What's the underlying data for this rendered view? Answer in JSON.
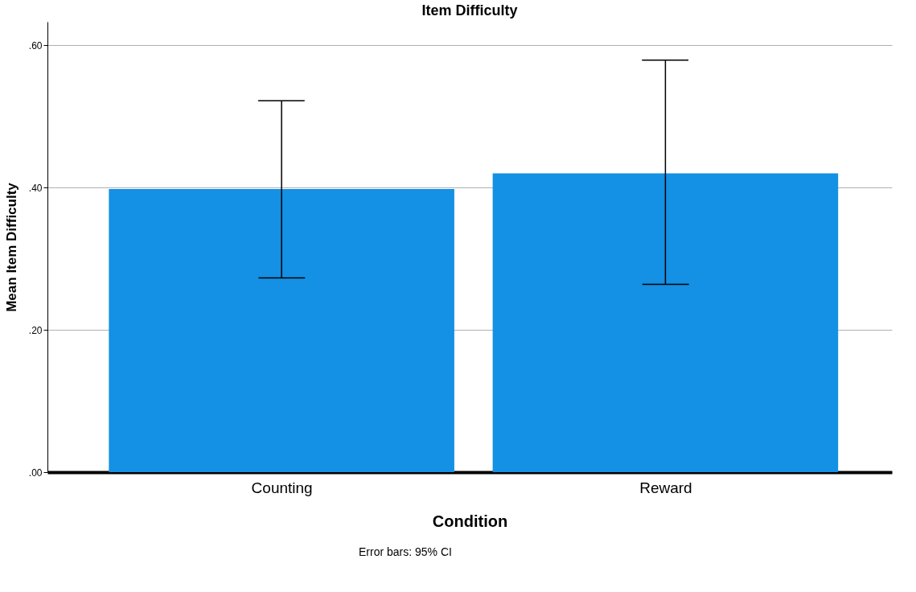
{
  "chart_data": {
    "type": "bar",
    "title": "Item Difficulty",
    "xlabel": "Condition",
    "ylabel": "Mean Item Difficulty",
    "categories": [
      "Counting",
      "Reward"
    ],
    "values": [
      0.398,
      0.42
    ],
    "color": "#1490e4",
    "errors": [
      [
        0.273,
        0.522
      ],
      [
        0.264,
        0.579
      ]
    ],
    "ylim": [
      0,
      0.633
    ],
    "yticks": [
      {
        "value": 0,
        "label": ".00"
      },
      {
        "value": 0.2,
        "label": ".20"
      },
      {
        "value": 0.4,
        "label": ".40"
      },
      {
        "value": 0.6,
        "label": ".60"
      }
    ],
    "grid": "y",
    "annotations": [
      "Error bars: 95% CI"
    ]
  }
}
